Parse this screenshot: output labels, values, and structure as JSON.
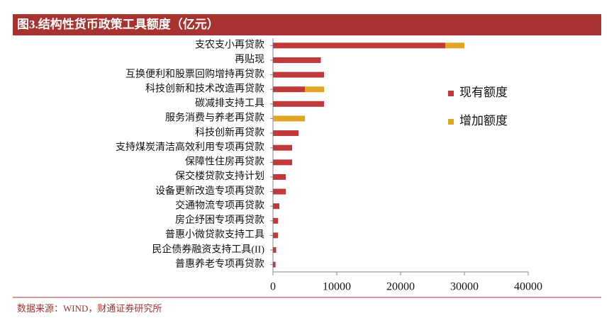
{
  "chart_data": {
    "type": "stacked-barh",
    "title": "图3.结构性货币政策工具额度（亿元）",
    "source": "数据来源：WIND，财通证券研究所",
    "categories": [
      "支农支小再贷款",
      "再贴现",
      "互换便利和股票回购增持再贷款",
      "科技创新和技术改造再贷款",
      "碳减排支持工具",
      "服务消费与养老再贷款",
      "科技创新再贷款",
      "支持煤炭清洁高效利用专项再贷款",
      "保障性住房再贷款",
      "保交楼贷款支持计划",
      "设备更新改造专项再贷款",
      "交通物流专项再贷款",
      "房企纾困专项再贷款",
      "普惠小微贷款支持工具",
      "民企债券融资支持工具(II)",
      "普惠养老专项再贷款"
    ],
    "series": [
      {
        "name": "现有额度",
        "color": "#c0393b",
        "values": [
          27000,
          7500,
          8000,
          5000,
          8000,
          0,
          4000,
          3000,
          3000,
          2000,
          2000,
          1000,
          800,
          800,
          500,
          400
        ]
      },
      {
        "name": "增加额度",
        "color": "#e0a526",
        "values": [
          3000,
          0,
          0,
          3000,
          0,
          5000,
          0,
          0,
          0,
          0,
          0,
          0,
          0,
          0,
          0,
          0
        ]
      }
    ],
    "xlim": [
      0,
      40000
    ],
    "xticks": [
      0,
      10000,
      20000,
      30000,
      40000
    ],
    "legend": "right"
  }
}
